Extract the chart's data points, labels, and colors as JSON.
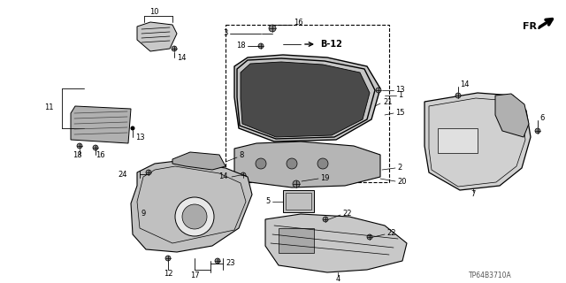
{
  "part_number": "TP64B3710A",
  "background_color": "#ffffff",
  "line_color": "#000000",
  "figsize": [
    6.4,
    3.2
  ],
  "dpi": 100
}
